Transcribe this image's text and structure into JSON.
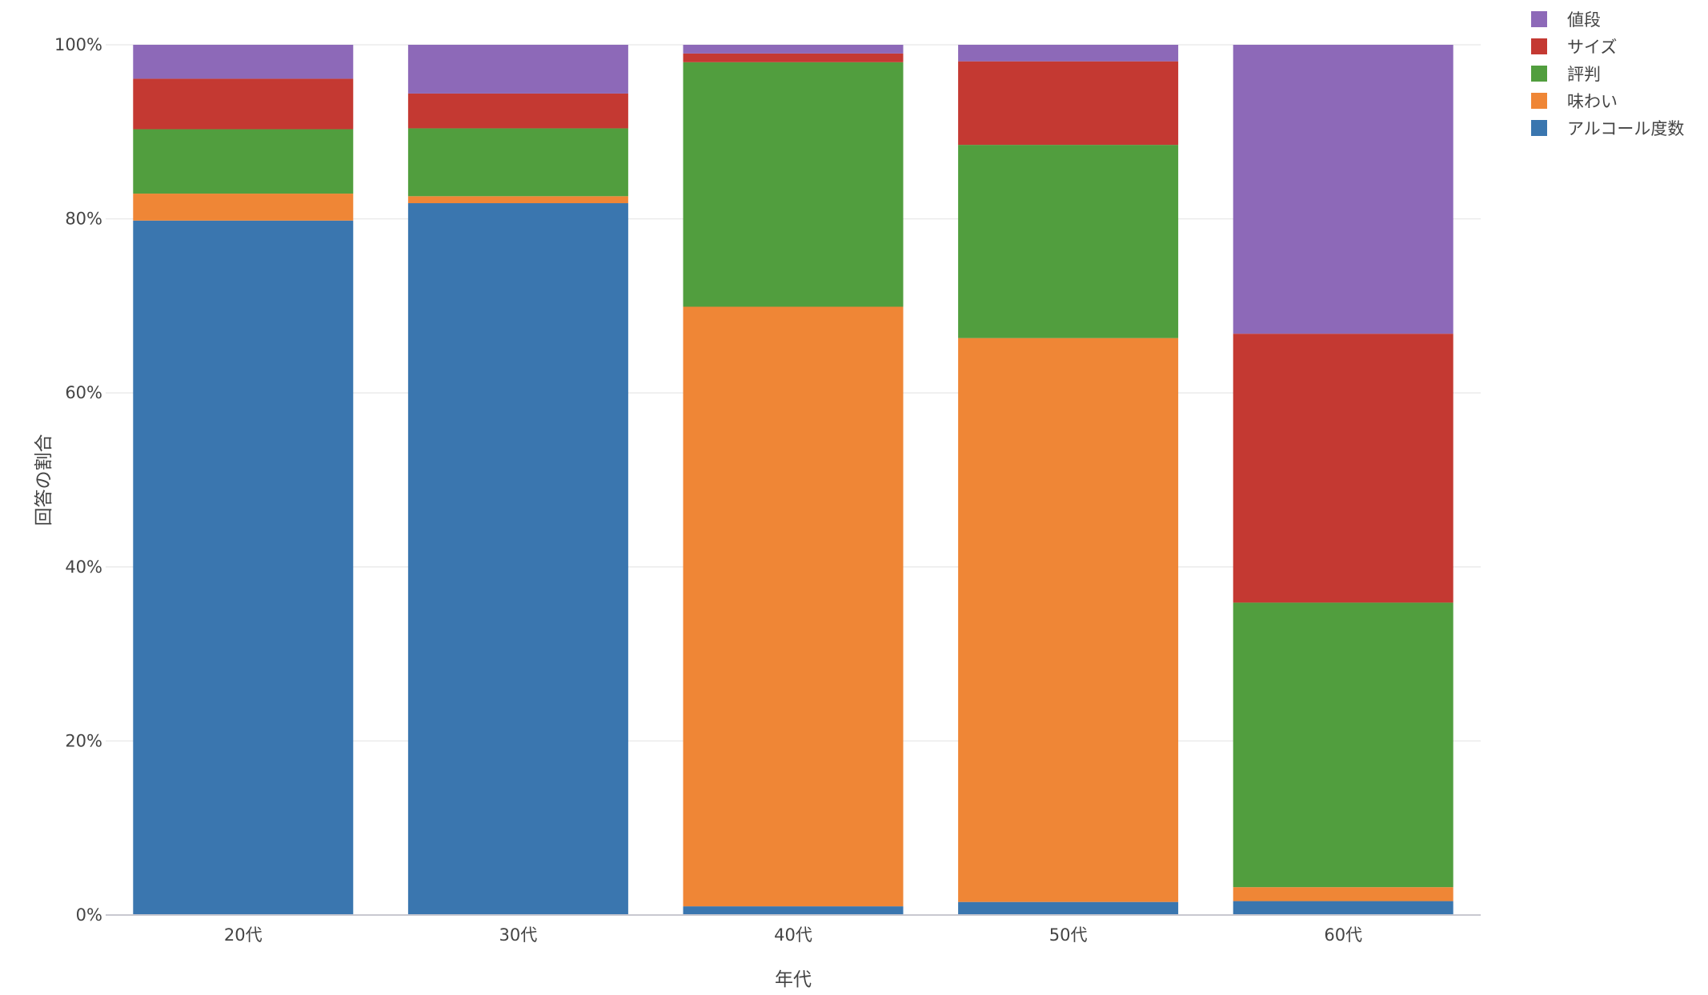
{
  "chart_data": {
    "type": "bar",
    "stacked": true,
    "normalized": true,
    "title": "",
    "xlabel": "年代",
    "ylabel": "回答の割合",
    "categories": [
      "20代",
      "30代",
      "40代",
      "50代",
      "60代"
    ],
    "ylim": [
      0,
      100
    ],
    "yticks": [
      0,
      20,
      40,
      60,
      80,
      100
    ],
    "ytick_suffix": "%",
    "grid": true,
    "legend_position": "top-right",
    "series": [
      {
        "name": "アルコール度数",
        "color": "#3a76af",
        "values": [
          79.8,
          81.8,
          1.0,
          1.5,
          1.6
        ]
      },
      {
        "name": "味わい",
        "color": "#ef8636",
        "values": [
          3.1,
          0.8,
          68.9,
          64.8,
          1.6
        ]
      },
      {
        "name": "評判",
        "color": "#519e3e",
        "values": [
          7.4,
          7.8,
          28.1,
          22.2,
          32.7
        ]
      },
      {
        "name": "サイズ",
        "color": "#c43932",
        "values": [
          5.8,
          4.0,
          1.0,
          9.6,
          30.9
        ]
      },
      {
        "name": "値段",
        "color": "#8d69b8",
        "values": [
          3.9,
          5.6,
          1.0,
          1.9,
          33.2
        ]
      }
    ]
  }
}
